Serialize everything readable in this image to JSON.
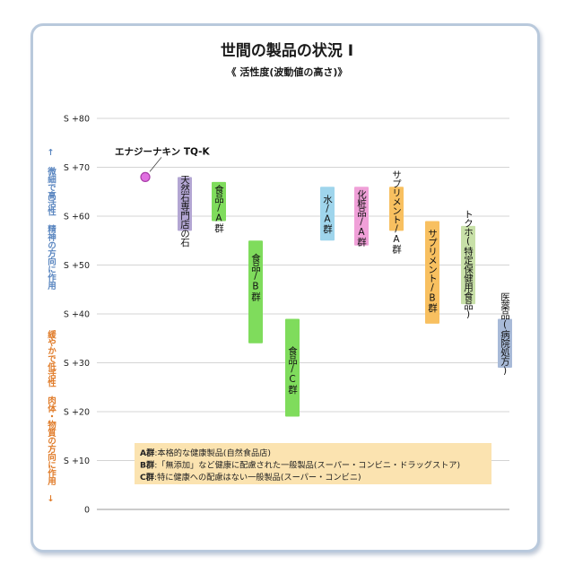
{
  "chart_data": {
    "type": "bar",
    "title": "世間の製品の状況 I",
    "subtitle": "《 活性度(波動値の高さ)》",
    "y_tick_labels": [
      "0",
      "S +10",
      "S +20",
      "S +30",
      "S +40",
      "S +50",
      "S +60",
      "S +70",
      "S +80"
    ],
    "y_ticks": [
      0,
      10,
      20,
      30,
      40,
      50,
      60,
      70,
      80
    ],
    "ylim": [
      0,
      80
    ],
    "grid": true,
    "ylabel_top": "↑ 微細で高活性 精神の方向に作用",
    "ylabel_bottom": "緩やかで低活性 肉体・物質の方向に作用 ↓",
    "point": {
      "label": "エナジーナキン TQ-K",
      "y": 68,
      "color": "#e070e0"
    },
    "bars": [
      {
        "label": "天然石専門店の石",
        "low": 57,
        "high": 68,
        "color": "#b3a6d3"
      },
      {
        "label": "食品/A群",
        "low": 59,
        "high": 67,
        "color": "#7fdc5c"
      },
      {
        "label": "食品/B群",
        "low": 34,
        "high": 55,
        "color": "#7fdc5c"
      },
      {
        "label": "食品/C群",
        "low": 19,
        "high": 39,
        "color": "#7fdc5c"
      },
      {
        "label": "水/A群",
        "low": 55,
        "high": 66,
        "color": "#9fd5ec"
      },
      {
        "label": "化粧品/A群",
        "low": 54,
        "high": 66,
        "color": "#f0a0d8"
      },
      {
        "label": "サプリメント/A群",
        "low": 57,
        "high": 66,
        "color": "#f8c060"
      },
      {
        "label": "サプリメント/B群",
        "low": 38,
        "high": 59,
        "color": "#f8c060"
      },
      {
        "label": "トクホ(特定保健用食品)",
        "low": 42,
        "high": 58,
        "color": "#c8e0a8"
      },
      {
        "label": "医薬品(病院処方)",
        "low": 29,
        "high": 39,
        "color": "#a8bad8"
      }
    ],
    "legend_box_color": "#fbe3b0",
    "legend": [
      {
        "key": "A群",
        "text": ":本格的な健康製品(自然食品店)"
      },
      {
        "key": "B群",
        "text": ":「無添加」など健康に配慮された一般製品(スーパー・コンビニ・ドラッグストア)"
      },
      {
        "key": "C群",
        "text": ":特に健康への配慮はない一般製品(スーパー・コンビニ)"
      }
    ]
  }
}
